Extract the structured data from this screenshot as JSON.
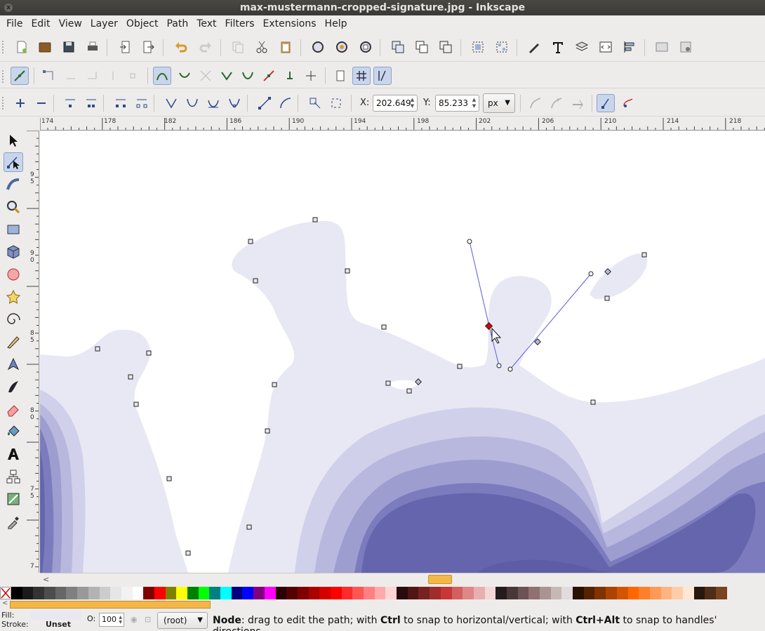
{
  "window": {
    "title": "max-mustermann-cropped-signature.jpg - Inkscape",
    "close_glyph": "x"
  },
  "menu": [
    "File",
    "Edit",
    "View",
    "Layer",
    "Object",
    "Path",
    "Text",
    "Filters",
    "Extensions",
    "Help"
  ],
  "node_toolbar": {
    "x_label": "X:",
    "x_value": "202.649",
    "y_label": "Y:",
    "y_value": "85.233",
    "unit": "px"
  },
  "ruler": {
    "h_labels": [
      "174",
      "178",
      "182",
      "186",
      "190",
      "194",
      "198",
      "202",
      "206",
      "210",
      "214",
      "218"
    ],
    "v_labels": [
      "9",
      "5",
      "9",
      "0",
      "8",
      "5",
      "8",
      "0",
      "7",
      "5",
      "7"
    ]
  },
  "status": {
    "fill_label": "Fill:",
    "stroke_label": "Stroke:",
    "stroke_value": "Unset",
    "opacity_label": "O:",
    "opacity_value": "100",
    "layer": "(root)",
    "message_bold": "Node",
    "message_1": ": drag to edit the path; with ",
    "mod_1": "Ctrl",
    "message_2": " to snap to horizontal/vertical; with ",
    "mod_2": "Ctrl+Alt",
    "message_3": " to snap to handles' directions"
  },
  "colors": {
    "accent": "#f2b748",
    "shape_light": "#e8e8f4",
    "shape_dark": "#6565ae",
    "selected_node": "#e00000"
  },
  "palette": [
    "#000000",
    "#1a1a1a",
    "#333333",
    "#4d4d4d",
    "#666666",
    "#808080",
    "#999999",
    "#b3b3b3",
    "#cccccc",
    "#e6e6e6",
    "#f2f2f2",
    "#ffffff",
    "#800000",
    "#ff0000",
    "#808000",
    "#ffff00",
    "#008000",
    "#00ff00",
    "#008080",
    "#00ffff",
    "#000080",
    "#0000ff",
    "#800080",
    "#ff00ff",
    "#2b0000",
    "#550000",
    "#800000",
    "#aa0000",
    "#d40000",
    "#ff0000",
    "#ff2a2a",
    "#ff5555",
    "#ff8080",
    "#ffaaaa",
    "#ffd5d5",
    "#280b0b",
    "#501616",
    "#782121",
    "#a02c2c",
    "#c83737",
    "#d35f5f",
    "#de8787",
    "#e9afaf",
    "#f4d7d7",
    "#241c1c",
    "#483737",
    "#6c5353",
    "#917070",
    "#ac9393",
    "#c8b7b7",
    "#e3dbdb",
    "#2b1100",
    "#552200",
    "#803300",
    "#aa4400",
    "#d45500",
    "#ff6600",
    "#ff7f2a",
    "#ff9955",
    "#ffb380",
    "#ffccaa",
    "#ffe6d5",
    "#28170b",
    "#502d16",
    "#784421"
  ]
}
